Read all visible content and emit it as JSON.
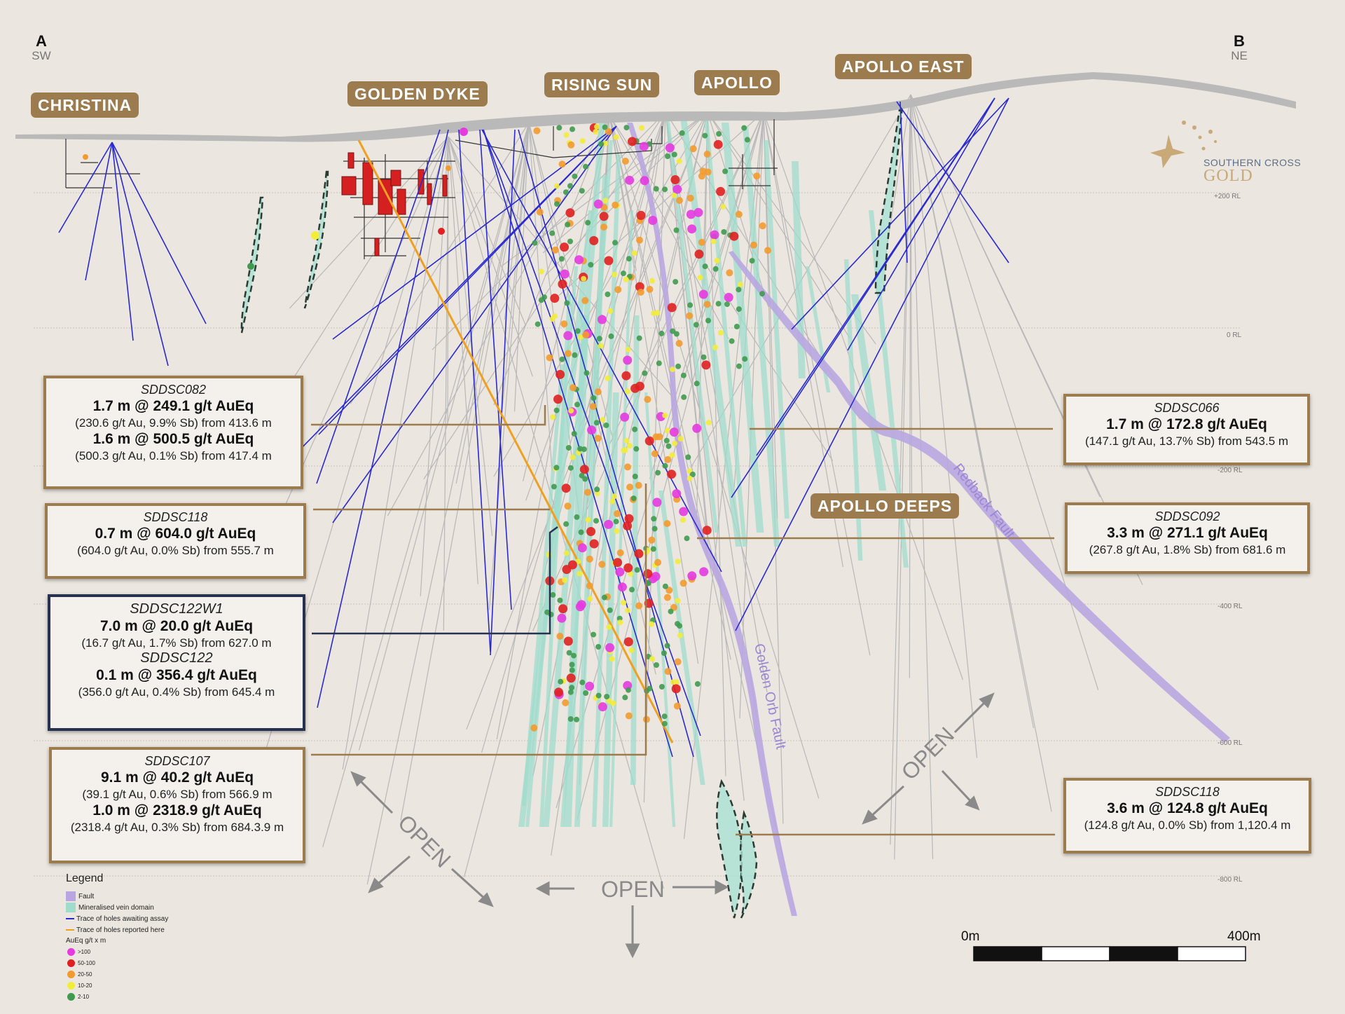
{
  "section_ends": {
    "start": {
      "letter": "A",
      "direction": "SW"
    },
    "end": {
      "letter": "B",
      "direction": "NE"
    }
  },
  "prospects": [
    "CHRISTINA",
    "GOLDEN DYKE",
    "RISING SUN",
    "APOLLO",
    "APOLLO EAST",
    "APOLLO DEEPS"
  ],
  "rl_labels": [
    "+200 RL",
    "0 RL",
    "-200 RL",
    "-400 RL",
    "-600 RL",
    "-800 RL"
  ],
  "faults": [
    "Redback Fault",
    "Golden Orb Fault"
  ],
  "open_label": "OPEN",
  "logo": {
    "line1": "SOUTHERN CROSS",
    "line2": "GOLD"
  },
  "intercepts": [
    {
      "hole": "SDDSC082",
      "lines": [
        {
          "int": "1.7 m @ 249.1 g/t AuEq",
          "det": "(230.6 g/t Au, 9.9% Sb) from 413.6 m"
        },
        {
          "int": "1.6 m @ 500.5 g/t AuEq",
          "det": "(500.3 g/t Au, 0.1% Sb) from 417.4 m"
        }
      ]
    },
    {
      "hole": "SDDSC118",
      "lines": [
        {
          "int": "0.7 m @ 604.0 g/t AuEq",
          "det": "(604.0 g/t Au, 0.0% Sb) from 555.7 m"
        }
      ]
    },
    {
      "hole": "SDDSC122W1",
      "lines": [
        {
          "int": "7.0 m @ 20.0 g/t AuEq",
          "det": "(16.7 g/t Au, 1.7% Sb) from 627.0 m"
        }
      ],
      "hole2": "SDDSC122",
      "lines2": [
        {
          "int": "0.1 m @ 356.4 g/t AuEq",
          "det": "(356.0 g/t Au, 0.4% Sb) from 645.4 m"
        }
      ]
    },
    {
      "hole": "SDDSC107",
      "lines": [
        {
          "int": "9.1 m @ 40.2 g/t AuEq",
          "det": "(39.1 g/t Au, 0.6% Sb) from 566.9 m"
        },
        {
          "int": "1.0 m @ 2318.9 g/t AuEq",
          "det": "(2318.4 g/t Au, 0.3% Sb) from 684.3.9 m"
        }
      ]
    },
    {
      "hole": "SDDSC066",
      "lines": [
        {
          "int": "1.7 m @ 172.8 g/t AuEq",
          "det": "(147.1 g/t Au, 13.7% Sb) from 543.5 m"
        }
      ]
    },
    {
      "hole": "SDDSC092",
      "lines": [
        {
          "int": "3.3 m @ 271.1 g/t AuEq",
          "det": "(267.8 g/t Au, 1.8% Sb) from 681.6 m"
        }
      ]
    },
    {
      "hole": "SDDSC118",
      "lines": [
        {
          "int": "3.6 m @ 124.8 g/t AuEq",
          "det": "(124.8 g/t Au, 0.0% Sb) from 1,120.4 m"
        }
      ]
    }
  ],
  "legend": {
    "title": "Legend",
    "items": [
      {
        "label": "Fault",
        "color": "#b9a6e0"
      },
      {
        "label": "Mineralised vein domain",
        "color": "#9fdccc"
      },
      {
        "label": "Trace of holes awaiting assay",
        "color": "#2a2ad0"
      },
      {
        "label": "Trace of holes reported here",
        "color": "#f0a020"
      }
    ],
    "grade_title": "AuEq g/t x m",
    "grades": [
      {
        "label": ">100",
        "color": "#e63ae0"
      },
      {
        "label": "50-100",
        "color": "#e02020"
      },
      {
        "label": "20-50",
        "color": "#f39a2e"
      },
      {
        "label": "10-20",
        "color": "#f2ec3a"
      },
      {
        "label": "2-10",
        "color": "#3f9a4f"
      }
    ]
  },
  "scale": {
    "start": "0m",
    "end": "400m"
  },
  "colors": {
    "background": "#ebe6df",
    "label_brown": "#9c7c4f",
    "navy": "#26324f",
    "vein": "#9fdccc",
    "fault": "#b9a6e0",
    "hole_awaiting": "#2a2ad0",
    "hole_reported": "#f0a020"
  }
}
